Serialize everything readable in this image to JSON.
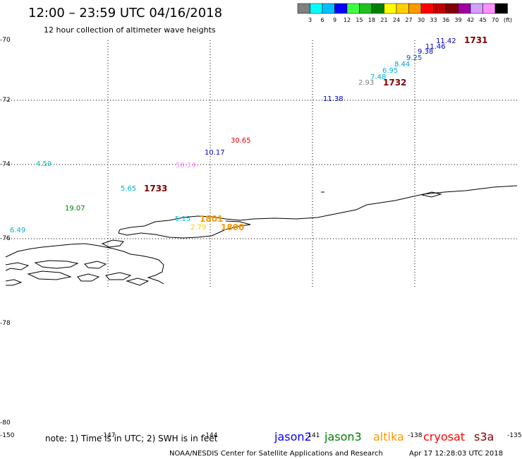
{
  "title": "12:00 – 23:59 UTC 04/16/2018",
  "subtitle": "12 hour collection of altimeter wave heights",
  "color_scale": {
    "values": [
      "3",
      "6",
      "9",
      "12",
      "15",
      "18",
      "21",
      "24",
      "27",
      "30",
      "33",
      "36",
      "39",
      "42",
      "45",
      "70"
    ],
    "unit": "(ft)",
    "colors": [
      "#808080",
      "#00ffff",
      "#00bfff",
      "#0000ff",
      "#40ff40",
      "#20c020",
      "#008000",
      "#ffff00",
      "#ffd000",
      "#ff9900",
      "#ff0000",
      "#c00000",
      "#800000",
      "#a000a0",
      "#d0a0ff",
      "#ff90ff",
      "#000000"
    ]
  },
  "axes": {
    "lat_labels": [
      "-70",
      "-72",
      "-74",
      "-76",
      "-78",
      "-80"
    ],
    "lon_labels": [
      "-150",
      "-147",
      "-144",
      "-141",
      "-138",
      "-135"
    ]
  },
  "wave_heights": [
    {
      "value": "11.42",
      "color": "#0000c0"
    },
    {
      "value": "11.46",
      "color": "#0000c0"
    },
    {
      "value": "9.38",
      "color": "#0000c0"
    },
    {
      "value": "9.25",
      "color": "#0050d0"
    },
    {
      "value": "8.44",
      "color": "#00a0d0"
    },
    {
      "value": "6.95",
      "color": "#00b0e0"
    },
    {
      "value": "7.48",
      "color": "#00b0e0"
    },
    {
      "value": "2.93",
      "color": "#808080"
    },
    {
      "value": "11.38",
      "color": "#0000c0"
    },
    {
      "value": "30.65",
      "color": "#e00000"
    },
    {
      "value": "10.17",
      "color": "#0000c0"
    },
    {
      "value": "4.59",
      "color": "#00c0c0"
    },
    {
      "value": "58.14",
      "color": "#ff90ff"
    },
    {
      "value": "5.65",
      "color": "#00b0d0"
    },
    {
      "value": "19.07",
      "color": "#008000"
    },
    {
      "value": "6.49",
      "color": "#00b0d0"
    },
    {
      "value": "5.15",
      "color": "#00c0e0"
    },
    {
      "value": "2.79",
      "color": "#ffd000"
    }
  ],
  "time_labels": [
    {
      "value": "1731",
      "color": "#800000"
    },
    {
      "value": "1732",
      "color": "#800000"
    },
    {
      "value": "1733",
      "color": "#800000"
    },
    {
      "value": "1801",
      "color": "#ff9900"
    },
    {
      "value": "1800",
      "color": "#ff9900"
    }
  ],
  "note": "note: 1) Time is in UTC; 2) SWH is in feet",
  "satellites": [
    {
      "name": "jason2",
      "color": "#0000ff"
    },
    {
      "name": "jason3",
      "color": "#008000"
    },
    {
      "name": "altika",
      "color": "#ff9900"
    },
    {
      "name": "cryosat",
      "color": "#ff0000"
    },
    {
      "name": "s3a",
      "color": "#800000"
    }
  ],
  "credit": "NOAA/NESDIS Center for Satellite Applications and Research",
  "generated": "Apr 17 12:28:03 UTC 2018"
}
